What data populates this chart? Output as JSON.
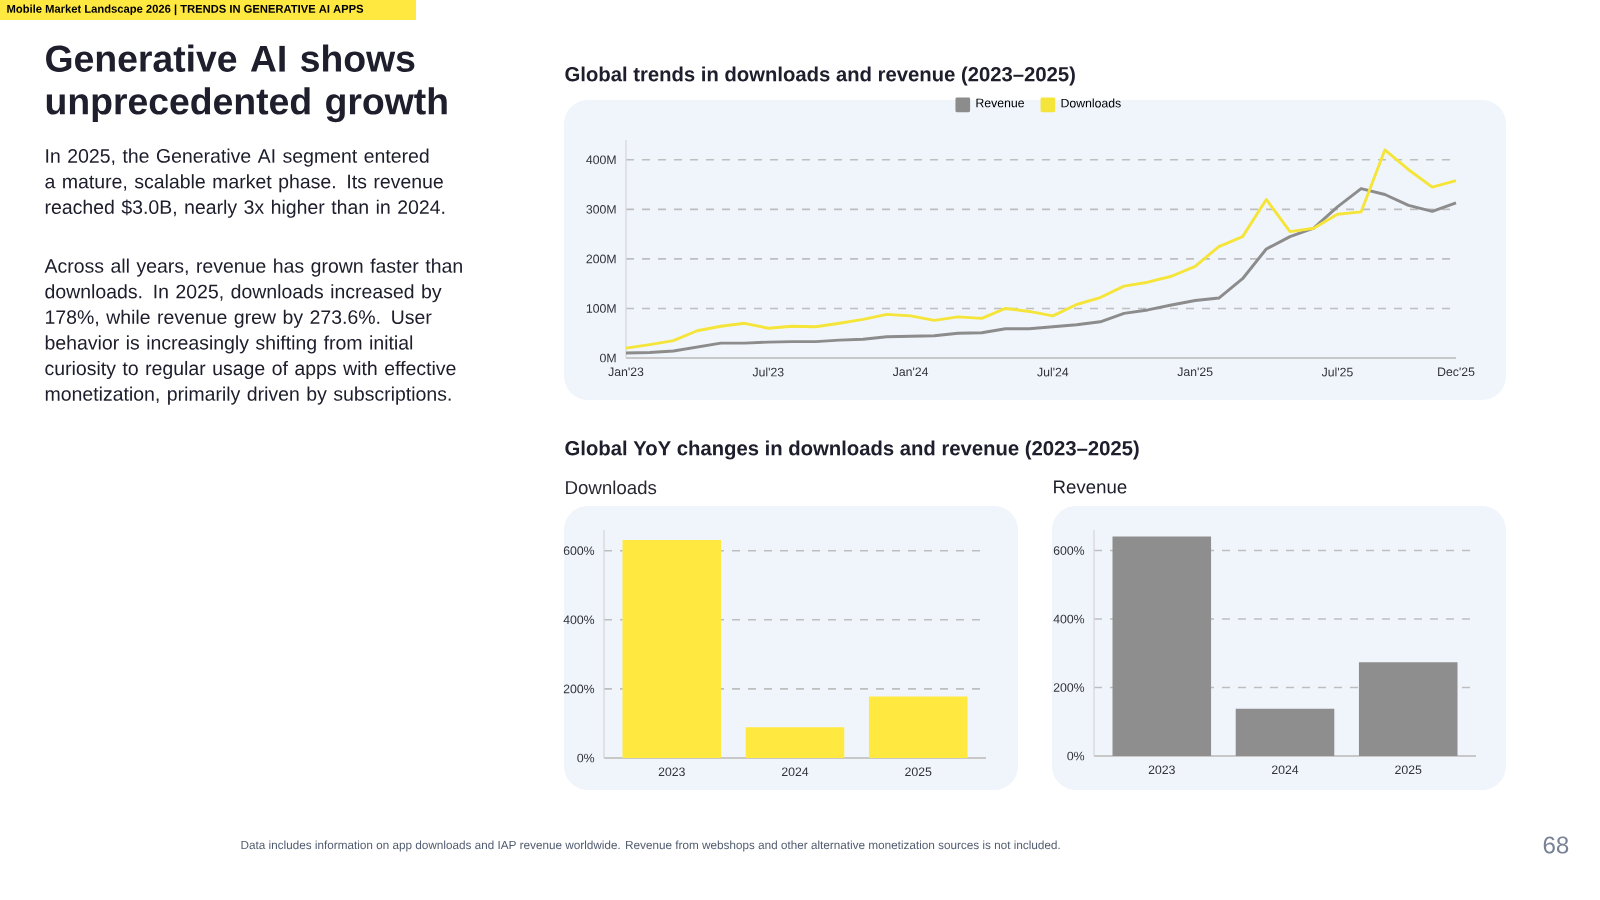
{
  "chart_data": [
    {
      "type": "other",
      "title": "Generative AI shows unprecedented growth",
      "annotations": [
        "Mobile Market Landscape 2026 | TRENDS IN GENERATIVE AI APPS",
        "In 2025, the Generative AI segment entered a mature, scalable market phase. Its revenue reached $3.0B, nearly 3x higher than in 2024.",
        "Across all years, revenue has grown faster than downloads. In 2025, downloads increased by 178%, while revenue grew by 273.6%. User behavior is increasingly shifting from initial curiosity to regular usage of apps with effective monetization, primarily driven by subscriptions.",
        "Data includes information on app downloads and IAP revenue worldwide. Revenue from webshops and other alternative monetization sources is not included.",
        "68"
      ]
    },
    {
      "type": "line",
      "title": "Global trends in downloads and revenue (2023–2025)",
      "x": [
        "2023-01",
        "2023-02",
        "2023-03",
        "2023-04",
        "2023-05",
        "2023-06",
        "2023-07",
        "2023-08",
        "2023-09",
        "2023-10",
        "2023-11",
        "2023-12",
        "2024-01",
        "2024-02",
        "2024-03",
        "2024-04",
        "2024-05",
        "2024-06",
        "2024-07",
        "2024-08",
        "2024-09",
        "2024-10",
        "2024-11",
        "2024-12",
        "2025-01",
        "2025-02",
        "2025-03",
        "2025-04",
        "2025-05",
        "2025-06",
        "2025-07",
        "2025-08",
        "2025-09",
        "2025-10",
        "2025-11",
        "2025-12"
      ],
      "series": [
        {
          "name": "Revenue",
          "color": "#8c8c8c",
          "values": [
            10,
            11,
            14,
            22,
            30,
            30,
            32,
            33,
            33,
            36,
            38,
            43,
            44,
            45,
            50,
            51,
            59,
            59,
            63,
            67,
            73,
            90,
            97,
            107,
            116,
            121,
            160,
            220,
            245,
            262,
            305,
            342,
            330,
            308,
            296,
            313
          ]
        },
        {
          "name": "Downloads",
          "color": "#f5e53a",
          "values": [
            20,
            27,
            35,
            55,
            64,
            70,
            60,
            64,
            63,
            70,
            78,
            88,
            85,
            76,
            83,
            80,
            100,
            94,
            85,
            108,
            122,
            145,
            153,
            165,
            185,
            225,
            245,
            320,
            255,
            262,
            290,
            295,
            420,
            380,
            345,
            358
          ]
        }
      ],
      "xlim": [
        "2023-01",
        "2025-12"
      ],
      "xticks": [
        {
          "value": "2023-01",
          "label": "Jan'23"
        },
        {
          "value": "2023-07",
          "label": "Jul'23"
        },
        {
          "value": "2024-01",
          "label": "Jan'24"
        },
        {
          "value": "2024-07",
          "label": "Jul'24"
        },
        {
          "value": "2025-01",
          "label": "Jan'25"
        },
        {
          "value": "2025-07",
          "label": "Jul'25"
        },
        {
          "value": "2025-12",
          "label": "Dec'25"
        }
      ],
      "ylim": [
        0,
        440
      ],
      "yticks": [
        {
          "value": 0,
          "label": "0M"
        },
        {
          "value": 100,
          "label": "100M"
        },
        {
          "value": 200,
          "label": "200M"
        },
        {
          "value": 300,
          "label": "300M"
        },
        {
          "value": 400,
          "label": "400M"
        }
      ],
      "grid": "y",
      "legend": "top"
    },
    {
      "type": "bar",
      "title": "Global YoY changes in downloads and revenue (2023–2025)",
      "subtitle": "Downloads",
      "categories": [
        "2023",
        "2024",
        "2025"
      ],
      "series": [
        {
          "color": "#ffe83f",
          "values": [
            631,
            89,
            178
          ]
        }
      ],
      "ylim": [
        0,
        660
      ],
      "yticks": [
        {
          "value": 0,
          "label": "0%"
        },
        {
          "value": 200,
          "label": "200%"
        },
        {
          "value": 400,
          "label": "400%"
        },
        {
          "value": 600,
          "label": "600%"
        }
      ],
      "grid": "y"
    },
    {
      "type": "bar",
      "title": "Revenue",
      "categories": [
        "2023",
        "2024",
        "2025"
      ],
      "series": [
        {
          "color": "#8e8e8e",
          "values": [
            641,
            138,
            274
          ]
        }
      ],
      "ylim": [
        0,
        660
      ],
      "yticks": [
        {
          "value": 0,
          "label": "0%"
        },
        {
          "value": 200,
          "label": "200%"
        },
        {
          "value": 400,
          "label": "400%"
        },
        {
          "value": 600,
          "label": "600%"
        }
      ],
      "grid": "y"
    }
  ]
}
